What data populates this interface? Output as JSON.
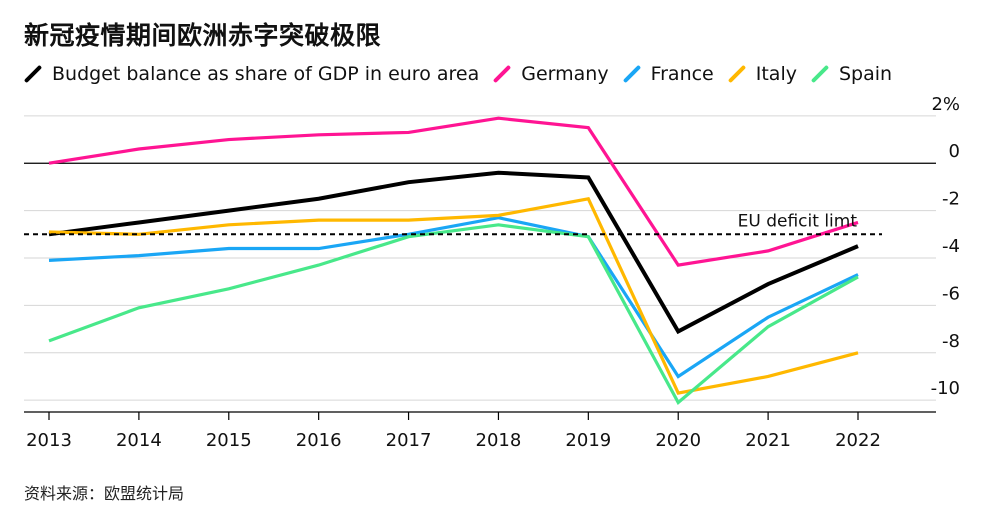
{
  "title": "新冠疫情期间欧洲赤字突破极限",
  "source": "资料来源：欧盟统计局",
  "chart_data": {
    "type": "line",
    "x": [
      "2013",
      "2014",
      "2015",
      "2016",
      "2017",
      "2018",
      "2019",
      "2020",
      "2021",
      "2022"
    ],
    "series": [
      {
        "name": "Budget balance as share of GDP in euro area",
        "color": "#000000",
        "values": [
          -3.0,
          -2.5,
          -2.0,
          -1.5,
          -0.8,
          -0.4,
          -0.6,
          -7.1,
          -5.1,
          -3.5
        ]
      },
      {
        "name": "Germany",
        "color": "#ff1493",
        "values": [
          0.0,
          0.6,
          1.0,
          1.2,
          1.3,
          1.9,
          1.5,
          -4.3,
          -3.7,
          -2.5
        ]
      },
      {
        "name": "France",
        "color": "#1aa6f5",
        "values": [
          -4.1,
          -3.9,
          -3.6,
          -3.6,
          -3.0,
          -2.3,
          -3.1,
          -9.0,
          -6.5,
          -4.7
        ]
      },
      {
        "name": "Italy",
        "color": "#ffb800",
        "values": [
          -2.9,
          -3.0,
          -2.6,
          -2.4,
          -2.4,
          -2.2,
          -1.5,
          -9.7,
          -9.0,
          -8.0
        ]
      },
      {
        "name": "Spain",
        "color": "#48e88a",
        "values": [
          -7.5,
          -6.1,
          -5.3,
          -4.3,
          -3.1,
          -2.6,
          -3.1,
          -10.1,
          -6.9,
          -4.8
        ]
      }
    ],
    "ylim": [
      -10.5,
      2.5
    ],
    "yticks": [
      2,
      0,
      -2,
      -4,
      -6,
      -8,
      -10
    ],
    "ytick_labels": [
      "2%",
      "0",
      "-2",
      "-4",
      "-6",
      "-8",
      "-10"
    ],
    "reference_line": {
      "value": -3,
      "label": "EU deficit limt"
    },
    "xlabel": "",
    "ylabel": ""
  }
}
